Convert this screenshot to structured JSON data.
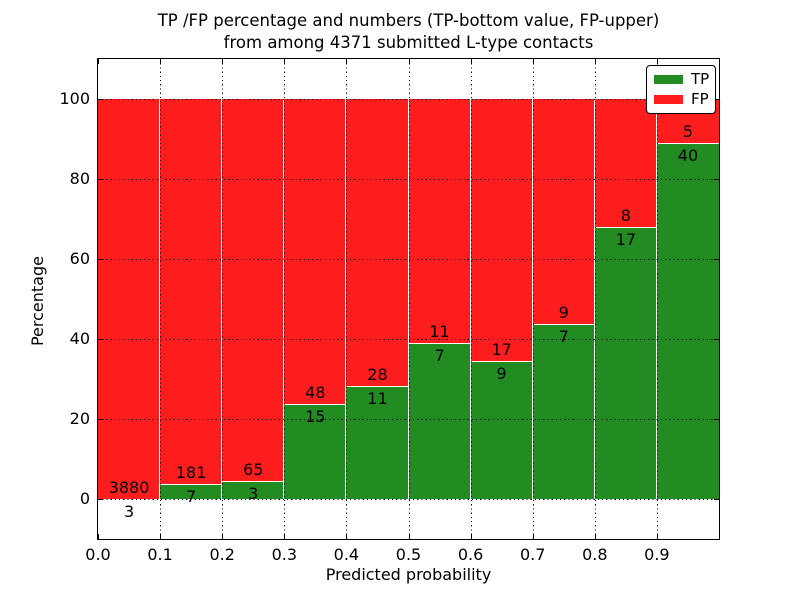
{
  "title": {
    "line1": "TP /FP percentage and numbers (TP-bottom value, FP-upper)",
    "line2": "from among 4371 submitted L-type contacts"
  },
  "axes": {
    "xlabel": "Predicted probability",
    "ylabel": "Percentage",
    "x_ticks": [
      "0.0",
      "0.1",
      "0.2",
      "0.3",
      "0.4",
      "0.5",
      "0.6",
      "0.7",
      "0.8",
      "0.9"
    ],
    "y_ticks": [
      "0",
      "20",
      "40",
      "60",
      "80",
      "100"
    ]
  },
  "legend": [
    {
      "label": "TP",
      "color": "#228B22"
    },
    {
      "label": "FP",
      "color": "#FF1D1D"
    }
  ],
  "colors": {
    "tp": "#228B22",
    "fp": "#FF1D1D",
    "grid": "#000000",
    "background": "#FFFFFF"
  },
  "chart_data": {
    "type": "bar",
    "stacked": true,
    "units": "percent",
    "title": "TP /FP percentage and numbers (TP-bottom value, FP-upper) from among 4371 submitted L-type contacts",
    "xlabel": "Predicted probability",
    "ylabel": "Percentage",
    "xlim": [
      0.0,
      1.0
    ],
    "ylim": [
      -10,
      110
    ],
    "grid": true,
    "legend_position": "upper right",
    "bin_width": 0.1,
    "categories": [
      "0.0-0.1",
      "0.1-0.2",
      "0.2-0.3",
      "0.3-0.4",
      "0.4-0.5",
      "0.5-0.6",
      "0.6-0.7",
      "0.7-0.8",
      "0.8-0.9",
      "0.9-1.0"
    ],
    "series": [
      {
        "name": "TP",
        "color": "#228B22",
        "counts": [
          3,
          7,
          3,
          15,
          11,
          7,
          9,
          7,
          17,
          40
        ],
        "percent": [
          0.08,
          3.72,
          4.41,
          23.81,
          28.21,
          38.89,
          34.62,
          43.75,
          68.0,
          88.89
        ]
      },
      {
        "name": "FP",
        "color": "#FF1D1D",
        "counts": [
          3880,
          181,
          65,
          48,
          28,
          11,
          17,
          9,
          8,
          5
        ],
        "percent": [
          99.92,
          96.28,
          95.59,
          76.19,
          71.79,
          61.11,
          65.38,
          56.25,
          32.0,
          11.11
        ]
      }
    ],
    "total_submitted": 4371
  }
}
